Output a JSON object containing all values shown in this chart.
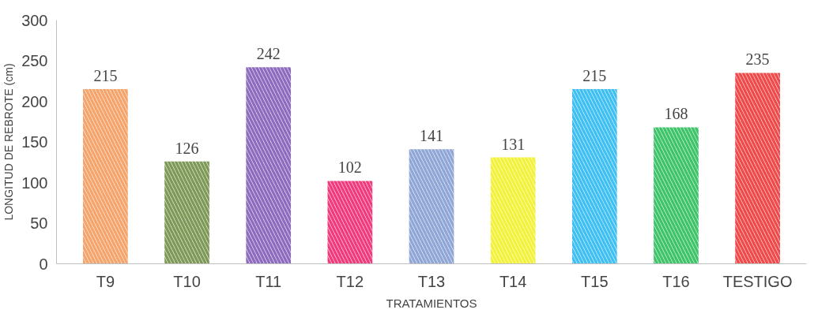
{
  "chart_data": {
    "type": "bar",
    "xlabel": "TRATAMIENTOS",
    "ylabel": "LONGITUD DE REBROTE (cm)",
    "categories": [
      "T9",
      "T10",
      "T11",
      "T12",
      "T13",
      "T14",
      "T15",
      "T16",
      "TESTIGO"
    ],
    "values": [
      215,
      126,
      242,
      102,
      141,
      131,
      215,
      168,
      235
    ],
    "colors": [
      "#f5a46c",
      "#7f9a58",
      "#8d6cbf",
      "#f23b7c",
      "#8fa6d6",
      "#f2f23a",
      "#40c0f2",
      "#3fc46a",
      "#f04a4a"
    ],
    "ylim": [
      0,
      300
    ],
    "yticks": [
      0,
      50,
      100,
      150,
      200,
      250,
      300
    ],
    "data_labels": true,
    "grid": false
  }
}
